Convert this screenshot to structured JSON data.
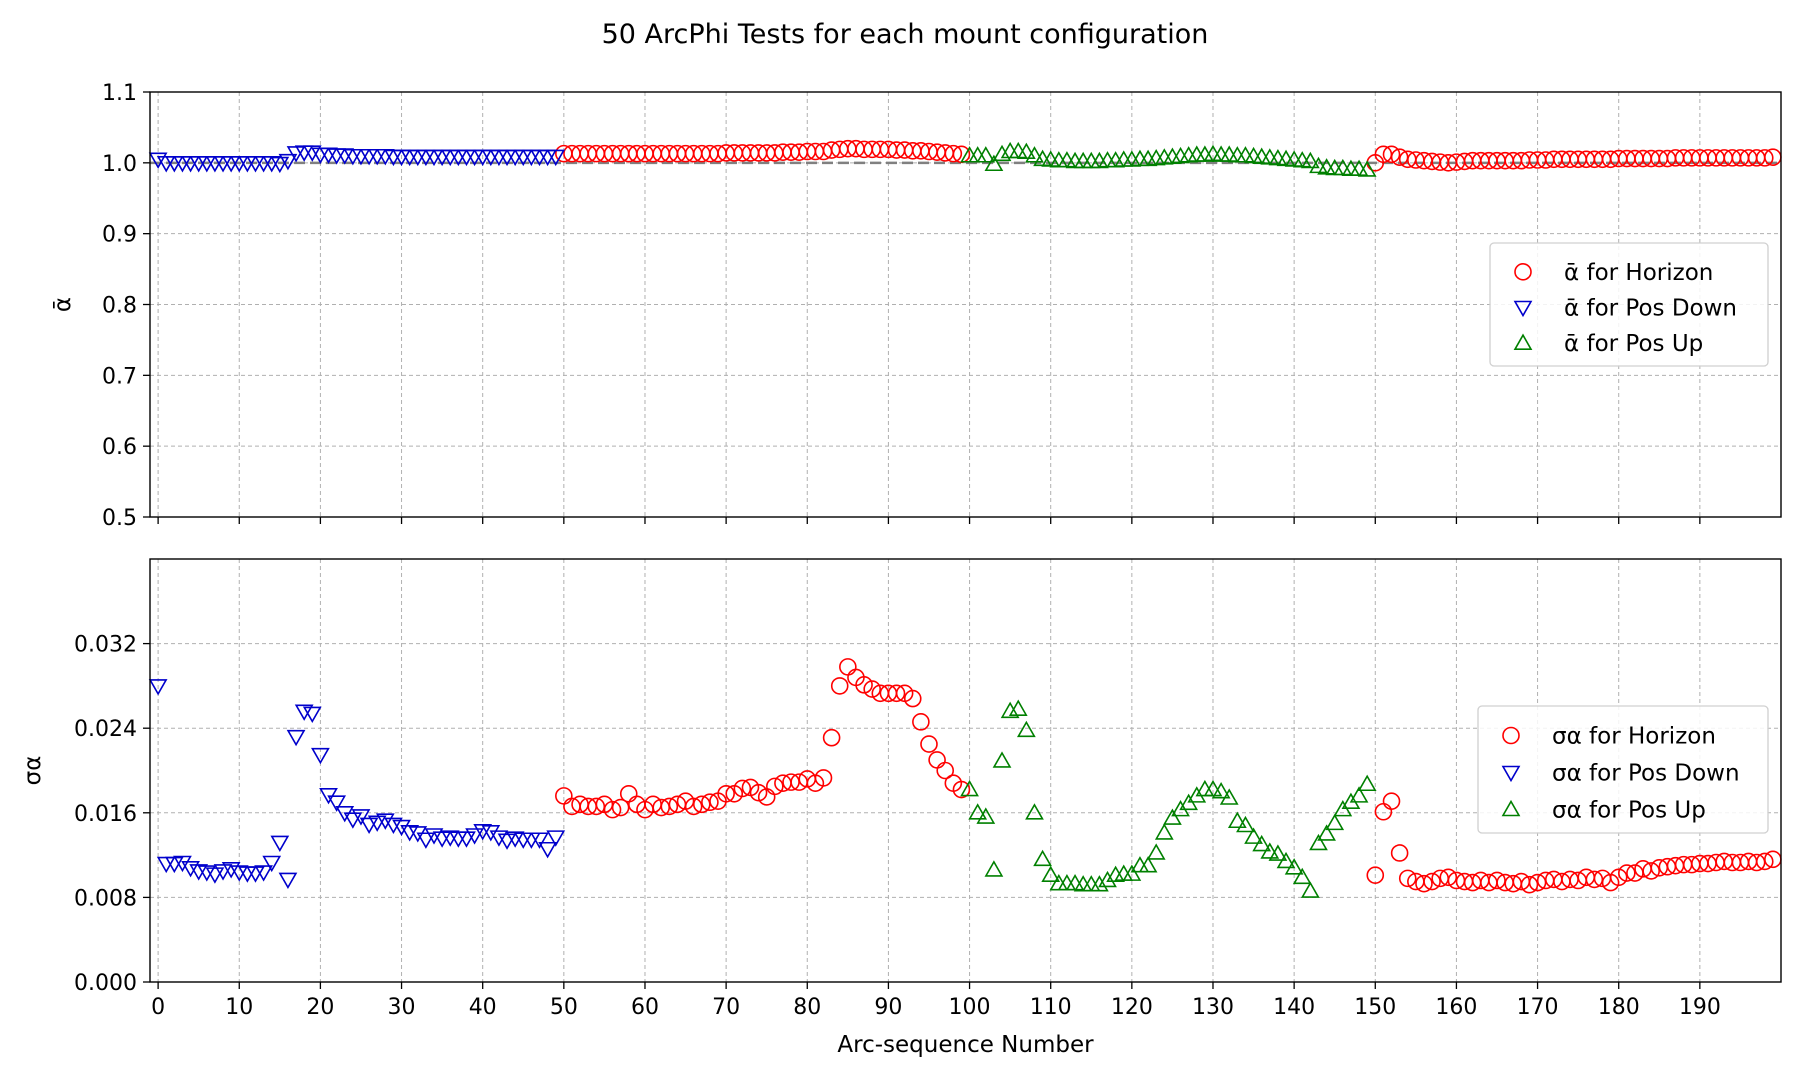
{
  "figure": {
    "title": "50 ArcPhi Tests for each mount configuration"
  },
  "colors": {
    "horizon": "#ff0000",
    "pos_down": "#0000cc",
    "pos_up": "#008000",
    "reference_line": "#808080",
    "grid": "#b0b0b0"
  },
  "chart_data": [
    {
      "type": "scatter",
      "panel": "top",
      "title": "50 ArcPhi Tests for each mount configuration",
      "xlabel": "",
      "ylabel": "ᾱ",
      "xlim": [
        -1,
        200
      ],
      "ylim": [
        0.5,
        1.1
      ],
      "yticks": [
        "0.5",
        "0.6",
        "0.7",
        "0.8",
        "0.9",
        "1.0",
        "1.1"
      ],
      "reference_line_y": 1.0,
      "grid": true,
      "legend_position": "center-right",
      "series": [
        {
          "name": "ᾱ for Horizon",
          "marker": "circle",
          "color": "#ff0000",
          "x": [
            50,
            51,
            52,
            53,
            54,
            55,
            56,
            57,
            58,
            59,
            60,
            61,
            62,
            63,
            64,
            65,
            66,
            67,
            68,
            69,
            70,
            71,
            72,
            73,
            74,
            75,
            76,
            77,
            78,
            79,
            80,
            81,
            82,
            83,
            84,
            85,
            86,
            87,
            88,
            89,
            90,
            91,
            92,
            93,
            94,
            95,
            96,
            97,
            98,
            99,
            150,
            151,
            152,
            153,
            154,
            155,
            156,
            157,
            158,
            159,
            160,
            161,
            162,
            163,
            164,
            165,
            166,
            167,
            168,
            169,
            170,
            171,
            172,
            173,
            174,
            175,
            176,
            177,
            178,
            179,
            180,
            181,
            182,
            183,
            184,
            185,
            186,
            187,
            188,
            189,
            190,
            191,
            192,
            193,
            194,
            195,
            196,
            197,
            198,
            199
          ],
          "y": [
            1.013,
            1.013,
            1.013,
            1.013,
            1.013,
            1.013,
            1.013,
            1.013,
            1.013,
            1.013,
            1.013,
            1.013,
            1.013,
            1.013,
            1.013,
            1.013,
            1.013,
            1.013,
            1.013,
            1.013,
            1.014,
            1.014,
            1.014,
            1.014,
            1.014,
            1.014,
            1.014,
            1.015,
            1.015,
            1.015,
            1.016,
            1.016,
            1.016,
            1.018,
            1.019,
            1.02,
            1.02,
            1.019,
            1.019,
            1.019,
            1.019,
            1.018,
            1.018,
            1.017,
            1.017,
            1.016,
            1.015,
            1.014,
            1.013,
            1.012,
            1.0,
            1.012,
            1.012,
            1.008,
            1.005,
            1.004,
            1.003,
            1.002,
            1.001,
            1.0,
            1.001,
            1.002,
            1.003,
            1.003,
            1.003,
            1.003,
            1.003,
            1.003,
            1.003,
            1.004,
            1.004,
            1.004,
            1.005,
            1.005,
            1.005,
            1.005,
            1.005,
            1.005,
            1.005,
            1.005,
            1.006,
            1.006,
            1.006,
            1.006,
            1.006,
            1.006,
            1.006,
            1.007,
            1.007,
            1.007,
            1.007,
            1.007,
            1.007,
            1.007,
            1.007,
            1.007,
            1.007,
            1.007,
            1.007,
            1.008
          ]
        },
        {
          "name": "ᾱ for Pos Down",
          "marker": "triangle-down",
          "color": "#0000cc",
          "x": [
            0,
            1,
            2,
            3,
            4,
            5,
            6,
            7,
            8,
            9,
            10,
            11,
            12,
            13,
            14,
            15,
            16,
            17,
            18,
            19,
            20,
            21,
            22,
            23,
            24,
            25,
            26,
            27,
            28,
            29,
            30,
            31,
            32,
            33,
            34,
            35,
            36,
            37,
            38,
            39,
            40,
            41,
            42,
            43,
            44,
            45,
            46,
            47,
            48,
            49
          ],
          "y": [
            1.005,
            1.0,
            1.0,
            1.0,
            1.0,
            1.0,
            1.0,
            1.0,
            1.0,
            1.0,
            1.0,
            1.0,
            1.0,
            1.0,
            1.0,
            0.999,
            1.003,
            1.014,
            1.015,
            1.015,
            1.012,
            1.012,
            1.011,
            1.011,
            1.01,
            1.01,
            1.01,
            1.01,
            1.01,
            1.009,
            1.009,
            1.009,
            1.009,
            1.009,
            1.009,
            1.009,
            1.009,
            1.009,
            1.009,
            1.009,
            1.009,
            1.009,
            1.009,
            1.009,
            1.009,
            1.009,
            1.009,
            1.009,
            1.009,
            1.009
          ]
        },
        {
          "name": "ᾱ for Pos Up",
          "marker": "triangle-up",
          "color": "#008000",
          "x": [
            100,
            101,
            102,
            103,
            104,
            105,
            106,
            107,
            108,
            109,
            110,
            111,
            112,
            113,
            114,
            115,
            116,
            117,
            118,
            119,
            120,
            121,
            122,
            123,
            124,
            125,
            126,
            127,
            128,
            129,
            130,
            131,
            132,
            133,
            134,
            135,
            136,
            137,
            138,
            139,
            140,
            141,
            142,
            143,
            144,
            145,
            146,
            147,
            148,
            149
          ],
          "y": [
            1.01,
            1.01,
            1.01,
            0.998,
            1.012,
            1.016,
            1.016,
            1.015,
            1.01,
            1.005,
            1.004,
            1.003,
            1.003,
            1.002,
            1.002,
            1.002,
            1.002,
            1.003,
            1.003,
            1.004,
            1.004,
            1.005,
            1.005,
            1.006,
            1.007,
            1.008,
            1.009,
            1.01,
            1.011,
            1.011,
            1.012,
            1.011,
            1.011,
            1.01,
            1.01,
            1.009,
            1.008,
            1.007,
            1.006,
            1.005,
            1.004,
            1.003,
            1.002,
            0.995,
            0.993,
            0.992,
            0.992,
            0.991,
            0.991,
            0.99
          ]
        }
      ]
    },
    {
      "type": "scatter",
      "panel": "bottom",
      "xlabel": "Arc-sequence Number",
      "ylabel": "σα",
      "xlim": [
        -1,
        200
      ],
      "ylim": [
        0.0,
        0.04
      ],
      "xticks": [
        "0",
        "10",
        "20",
        "30",
        "40",
        "50",
        "60",
        "70",
        "80",
        "90",
        "100",
        "110",
        "120",
        "130",
        "140",
        "150",
        "160",
        "170",
        "180",
        "190"
      ],
      "yticks": [
        "0.000",
        "0.008",
        "0.016",
        "0.024",
        "0.032"
      ],
      "grid": true,
      "legend_position": "center-right",
      "series": [
        {
          "name": "σα for Horizon",
          "marker": "circle",
          "color": "#ff0000",
          "x": [
            50,
            51,
            52,
            53,
            54,
            55,
            56,
            57,
            58,
            59,
            60,
            61,
            62,
            63,
            64,
            65,
            66,
            67,
            68,
            69,
            70,
            71,
            72,
            73,
            74,
            75,
            76,
            77,
            78,
            79,
            80,
            81,
            82,
            83,
            84,
            85,
            86,
            87,
            88,
            89,
            90,
            91,
            92,
            93,
            94,
            95,
            96,
            97,
            98,
            99,
            150,
            151,
            152,
            153,
            154,
            155,
            156,
            157,
            158,
            159,
            160,
            161,
            162,
            163,
            164,
            165,
            166,
            167,
            168,
            169,
            170,
            171,
            172,
            173,
            174,
            175,
            176,
            177,
            178,
            179,
            180,
            181,
            182,
            183,
            184,
            185,
            186,
            187,
            188,
            189,
            190,
            191,
            192,
            193,
            194,
            195,
            196,
            197,
            198,
            199
          ],
          "y": [
            0.0176,
            0.0166,
            0.0168,
            0.0166,
            0.0166,
            0.0168,
            0.0163,
            0.0165,
            0.0178,
            0.0168,
            0.0163,
            0.0168,
            0.0165,
            0.0166,
            0.0168,
            0.0171,
            0.0166,
            0.0168,
            0.017,
            0.0171,
            0.0178,
            0.0178,
            0.0183,
            0.0184,
            0.0179,
            0.0175,
            0.0185,
            0.0188,
            0.0189,
            0.0189,
            0.0192,
            0.0188,
            0.0193,
            0.0231,
            0.028,
            0.0298,
            0.0288,
            0.0281,
            0.0277,
            0.0273,
            0.0273,
            0.0273,
            0.0273,
            0.0268,
            0.0246,
            0.0225,
            0.021,
            0.02,
            0.0188,
            0.0182,
            0.0101,
            0.0161,
            0.0171,
            0.0122,
            0.0098,
            0.0095,
            0.0093,
            0.0095,
            0.0098,
            0.0099,
            0.0096,
            0.0095,
            0.0094,
            0.0096,
            0.0094,
            0.0096,
            0.0094,
            0.0093,
            0.0095,
            0.0092,
            0.0094,
            0.0096,
            0.0097,
            0.0095,
            0.0097,
            0.0096,
            0.0099,
            0.0097,
            0.0098,
            0.0094,
            0.0099,
            0.0103,
            0.0103,
            0.0107,
            0.0105,
            0.0108,
            0.0109,
            0.011,
            0.0111,
            0.0111,
            0.0112,
            0.0112,
            0.0113,
            0.0114,
            0.0113,
            0.0113,
            0.0114,
            0.0113,
            0.0114,
            0.0116
          ]
        },
        {
          "name": "σα for Pos Down",
          "marker": "triangle-down",
          "color": "#0000cc",
          "x": [
            0,
            1,
            2,
            3,
            4,
            5,
            6,
            7,
            8,
            9,
            10,
            11,
            12,
            13,
            14,
            15,
            16,
            17,
            18,
            19,
            20,
            21,
            22,
            23,
            24,
            25,
            26,
            27,
            28,
            29,
            30,
            31,
            32,
            33,
            34,
            35,
            36,
            37,
            38,
            39,
            40,
            41,
            42,
            43,
            44,
            45,
            46,
            47,
            48,
            49
          ],
          "y": [
            0.028,
            0.0112,
            0.0112,
            0.0113,
            0.0108,
            0.0105,
            0.0104,
            0.0102,
            0.0105,
            0.0107,
            0.0104,
            0.0103,
            0.0103,
            0.0104,
            0.0113,
            0.0132,
            0.0097,
            0.0232,
            0.0256,
            0.0254,
            0.0215,
            0.0177,
            0.017,
            0.016,
            0.0154,
            0.0157,
            0.0149,
            0.0151,
            0.0153,
            0.0149,
            0.0147,
            0.0142,
            0.0141,
            0.0135,
            0.0139,
            0.0136,
            0.0137,
            0.0136,
            0.0136,
            0.0139,
            0.0143,
            0.0142,
            0.0137,
            0.0134,
            0.0136,
            0.0135,
            0.0135,
            0.0135,
            0.0126,
            0.0137
          ]
        },
        {
          "name": "σα for Pos Up",
          "marker": "triangle-up",
          "color": "#008000",
          "x": [
            100,
            101,
            102,
            103,
            104,
            105,
            106,
            107,
            108,
            109,
            110,
            111,
            112,
            113,
            114,
            115,
            116,
            117,
            118,
            119,
            120,
            121,
            122,
            123,
            124,
            125,
            126,
            127,
            128,
            129,
            130,
            131,
            132,
            133,
            134,
            135,
            136,
            137,
            138,
            139,
            140,
            141,
            142,
            143,
            144,
            145,
            146,
            147,
            148,
            149
          ],
          "y": [
            0.0182,
            0.016,
            0.0156,
            0.0106,
            0.0209,
            0.0256,
            0.0258,
            0.0238,
            0.016,
            0.0116,
            0.0101,
            0.0093,
            0.0093,
            0.0093,
            0.0092,
            0.0092,
            0.0092,
            0.0096,
            0.0101,
            0.0102,
            0.0102,
            0.011,
            0.011,
            0.0122,
            0.0141,
            0.0155,
            0.0163,
            0.0169,
            0.0176,
            0.0182,
            0.0182,
            0.018,
            0.0174,
            0.0152,
            0.0148,
            0.0137,
            0.013,
            0.0123,
            0.0121,
            0.0114,
            0.0108,
            0.0099,
            0.0086,
            0.0131,
            0.014,
            0.015,
            0.0163,
            0.017,
            0.0176,
            0.0187
          ]
        }
      ]
    }
  ]
}
